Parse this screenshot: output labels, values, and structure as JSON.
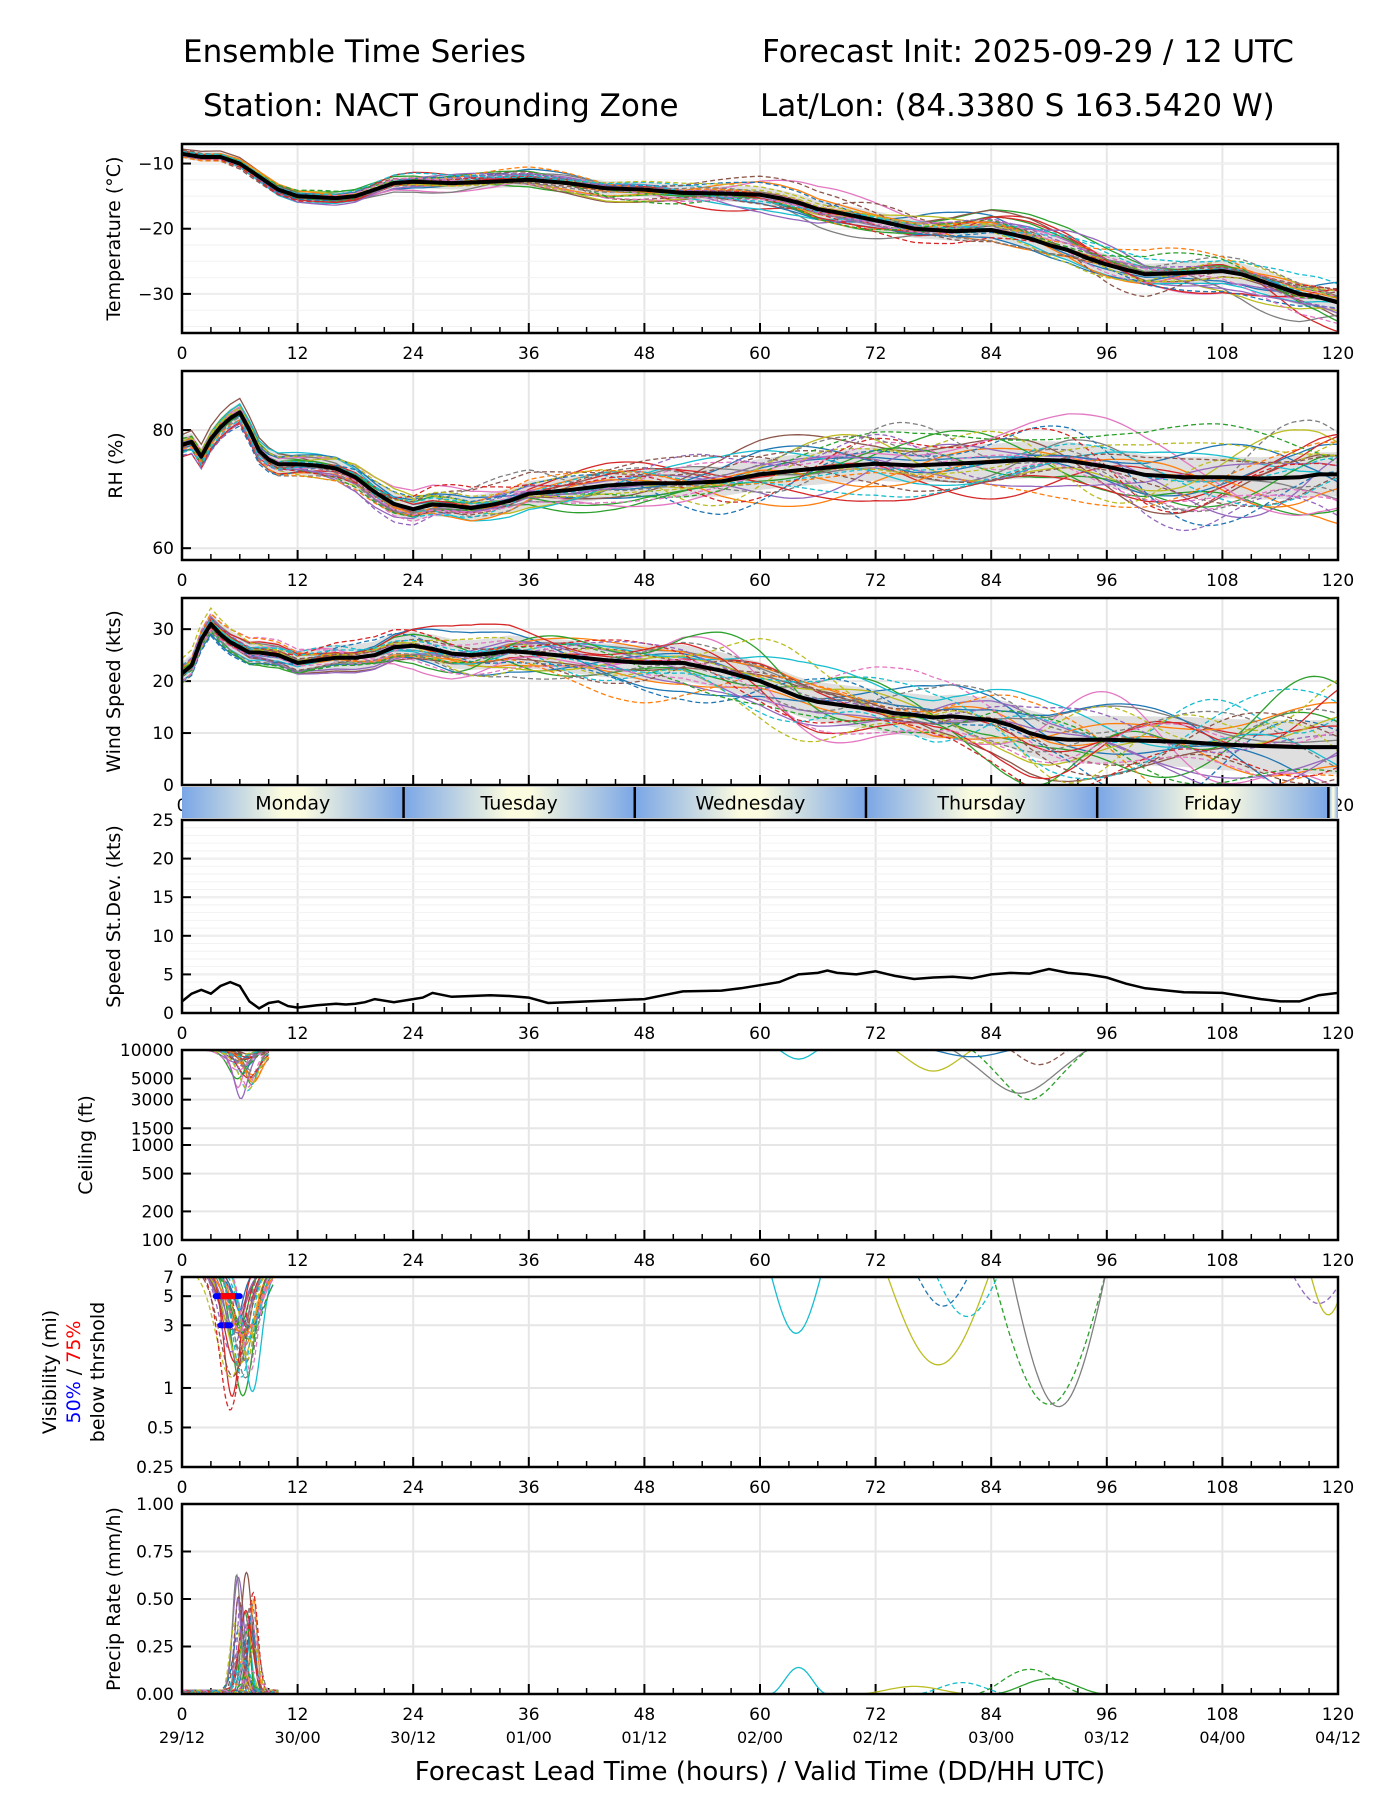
{
  "header": {
    "title_left_1": "Ensemble Time Series",
    "title_left_2": "Station: NACT Grounding Zone",
    "title_right_1": "Forecast Init: 2025-09-29 / 12 UTC",
    "title_right_2": "Lat/Lon: (84.3380 S 163.5420 W)"
  },
  "chart_data": {
    "type": "line",
    "xlabel": "Forecast Lead Time (hours) / Valid Time (DD/HH UTC)",
    "x_range": [
      0,
      120
    ],
    "x_ticks": [
      0,
      12,
      24,
      36,
      48,
      60,
      72,
      84,
      96,
      108,
      120
    ],
    "valid_time_labels": [
      "29/12",
      "30/00",
      "30/12",
      "01/00",
      "01/12",
      "02/00",
      "02/12",
      "03/00",
      "03/12",
      "04/00",
      "04/12"
    ],
    "grid": true,
    "ensemble_members": 30,
    "colors": {
      "mean": "#000000",
      "spread_band": "#d9d9d9",
      "palette": [
        "#1f77b4",
        "#ff7f0e",
        "#2ca02c",
        "#d62728",
        "#9467bd",
        "#8c564b",
        "#e377c2",
        "#7f7f7f",
        "#bcbd22",
        "#17becf"
      ],
      "threshold_50": "#0000ff",
      "threshold_75": "#ff0000",
      "day_band_edge": "#7aa6e6",
      "day_band_mid": "#fbfbe0"
    },
    "days": {
      "labels": [
        "Monday",
        "Tuesday",
        "Wednesday",
        "Thursday",
        "Friday"
      ],
      "boundaries_hours": [
        23,
        47,
        71,
        95,
        119
      ]
    },
    "panels": [
      {
        "id": "temperature",
        "ylabel": "Temperature (°C)",
        "ylim": [
          -36,
          -7
        ],
        "y_ticks": [
          -10,
          -20,
          -30
        ],
        "y_tick_labels": [
          "−10",
          "−20",
          "−30"
        ],
        "mean": {
          "x": [
            0,
            2,
            4,
            6,
            8,
            10,
            12,
            16,
            18,
            20,
            22,
            24,
            28,
            32,
            36,
            40,
            44,
            48,
            52,
            56,
            60,
            62,
            64,
            66,
            68,
            72,
            76,
            80,
            84,
            86,
            88,
            90,
            92,
            94,
            96,
            98,
            100,
            104,
            108,
            110,
            112,
            114,
            116,
            118,
            120
          ],
          "y": [
            -8.5,
            -9,
            -9,
            -10,
            -12,
            -14,
            -15,
            -15.3,
            -15,
            -14,
            -13,
            -12.8,
            -13,
            -12.8,
            -12.5,
            -13,
            -13.8,
            -14,
            -14.5,
            -14.6,
            -14.8,
            -15.3,
            -16,
            -17,
            -17.5,
            -18.7,
            -20,
            -20.4,
            -20.2,
            -20.8,
            -21.5,
            -22.5,
            -23.3,
            -24.5,
            -25.5,
            -26.3,
            -27,
            -26.8,
            -26.5,
            -27,
            -28,
            -29,
            -30,
            -30.5,
            -31.3
          ]
        },
        "spread": 1.2
      },
      {
        "id": "rh",
        "ylabel": "RH (%)",
        "ylim": [
          58,
          90
        ],
        "y_ticks": [
          60,
          80
        ],
        "y_tick_labels": [
          "60",
          "80"
        ],
        "mean": {
          "x": [
            0,
            1,
            2,
            3,
            4,
            5,
            6,
            7,
            8,
            9,
            10,
            12,
            14,
            16,
            18,
            20,
            22,
            24,
            26,
            28,
            30,
            32,
            34,
            36,
            40,
            44,
            48,
            52,
            56,
            60,
            64,
            68,
            72,
            76,
            80,
            84,
            88,
            92,
            96,
            100,
            104,
            108,
            112,
            116,
            118,
            120
          ],
          "y": [
            77.5,
            78,
            75.5,
            78.5,
            80.5,
            82,
            83,
            80,
            76.5,
            75,
            74.2,
            74.2,
            74,
            73.5,
            72,
            69.5,
            67.5,
            66.6,
            67.4,
            67.2,
            66.8,
            67.3,
            68,
            69.2,
            69.8,
            70.6,
            71,
            71,
            71.3,
            72.5,
            73.2,
            73.8,
            74.3,
            74,
            74.3,
            74.6,
            75,
            74.8,
            73.8,
            72.4,
            72,
            72,
            71.8,
            72,
            72.5,
            72.5
          ]
        },
        "spread": 2.5
      },
      {
        "id": "wind_speed",
        "ylabel": "Wind Speed (kts)",
        "ylim": [
          0,
          36
        ],
        "y_ticks": [
          0,
          10,
          20,
          30
        ],
        "y_tick_labels": [
          "0",
          "10",
          "20",
          "30"
        ],
        "mean": {
          "x": [
            0,
            1,
            2,
            3,
            4,
            5,
            6,
            7,
            8,
            10,
            12,
            14,
            16,
            18,
            20,
            22,
            24,
            26,
            28,
            30,
            32,
            34,
            36,
            40,
            44,
            48,
            52,
            56,
            58,
            60,
            62,
            64,
            66,
            68,
            70,
            72,
            74,
            76,
            78,
            80,
            84,
            86,
            88,
            90,
            92,
            96,
            100,
            104,
            108,
            112,
            116,
            120
          ],
          "y": [
            21.5,
            23,
            28,
            31,
            29,
            27.5,
            26.5,
            25.5,
            25.5,
            25,
            23.5,
            24,
            24.5,
            24.5,
            25,
            26.5,
            26.8,
            26.2,
            25.3,
            25,
            25.3,
            25.8,
            25.5,
            24.8,
            24,
            23.5,
            23.5,
            22,
            21,
            20,
            18.5,
            17,
            16,
            15.5,
            15,
            14.5,
            13.8,
            13.5,
            13,
            13.2,
            12.5,
            11.5,
            10,
            9,
            8.7,
            8.7,
            8.5,
            8.3,
            7.8,
            7.5,
            7.3,
            7.3
          ]
        },
        "spread": 3.5
      },
      {
        "id": "speed_stdev",
        "ylabel": "Speed St.Dev. (kts)",
        "ylim": [
          0,
          25
        ],
        "y_ticks": [
          0,
          5,
          10,
          15,
          20,
          25
        ],
        "y_tick_labels": [
          "0",
          "5",
          "10",
          "15",
          "20",
          "25"
        ],
        "single": {
          "x": [
            0,
            1,
            2,
            3,
            4,
            5,
            6,
            7,
            8,
            9,
            10,
            11,
            12,
            14,
            16,
            17,
            18,
            19,
            20,
            22,
            24,
            25,
            26,
            28,
            30,
            32,
            34,
            36,
            38,
            40,
            44,
            48,
            50,
            52,
            56,
            58,
            60,
            62,
            64,
            66,
            67,
            68,
            70,
            72,
            74,
            76,
            78,
            80,
            82,
            84,
            85,
            86,
            88,
            90,
            92,
            94,
            96,
            98,
            100,
            104,
            108,
            110,
            112,
            114,
            116,
            118,
            120
          ],
          "y": [
            1.5,
            2.5,
            3,
            2.5,
            3.5,
            4,
            3.5,
            1.5,
            0.6,
            1.3,
            1.5,
            0.9,
            0.7,
            1,
            1.2,
            1.1,
            1.2,
            1.4,
            1.8,
            1.4,
            1.8,
            2,
            2.6,
            2.1,
            2.2,
            2.3,
            2.2,
            2,
            1.3,
            1.4,
            1.6,
            1.8,
            2.3,
            2.8,
            2.9,
            3.2,
            3.6,
            4,
            5,
            5.2,
            5.5,
            5.2,
            5,
            5.4,
            4.8,
            4.4,
            4.6,
            4.7,
            4.5,
            5,
            5.1,
            5.2,
            5.1,
            5.7,
            5.2,
            5.0,
            4.6,
            3.8,
            3.2,
            2.7,
            2.6,
            2.2,
            1.8,
            1.5,
            1.5,
            2.3,
            2.6
          ]
        }
      },
      {
        "id": "ceiling",
        "ylabel": "Ceiling (ft)",
        "scale": "log",
        "ylim": [
          100,
          10000
        ],
        "y_ticks": [
          100,
          200,
          500,
          1000,
          1500,
          3000,
          5000,
          10000
        ],
        "y_tick_labels": [
          "100",
          "200",
          "500",
          "1000",
          "1500",
          "3000",
          "5000",
          "10000"
        ]
      },
      {
        "id": "visibility",
        "ylabel": "Visibility (mi)",
        "ylabel_50": "50%",
        "ylabel_sep": " / ",
        "ylabel_75": "75%",
        "ylabel_sub": "below thrshold",
        "scale": "log",
        "ylim": [
          0.25,
          7
        ],
        "y_ticks": [
          0.25,
          0.5,
          1,
          3,
          5,
          7
        ],
        "y_tick_labels": [
          "0.25",
          "0.5",
          "1",
          "3",
          "5",
          "7"
        ],
        "threshold_markers": [
          {
            "threshold_mi": 5,
            "hours_50": [
              3.5,
              6
            ],
            "hours_75": [
              4,
              5.5
            ]
          },
          {
            "threshold_mi": 3,
            "hours_50": [
              4,
              5
            ],
            "hours_75": [
              4.3,
              4.4
            ]
          }
        ]
      },
      {
        "id": "precip_rate",
        "ylabel": "Precip Rate (mm/h)",
        "ylim": [
          0,
          1
        ],
        "y_ticks": [
          0,
          0.25,
          0.5,
          0.75,
          1.0
        ],
        "y_tick_labels": [
          "0.00",
          "0.25",
          "0.50",
          "0.75",
          "1.00"
        ]
      }
    ]
  }
}
